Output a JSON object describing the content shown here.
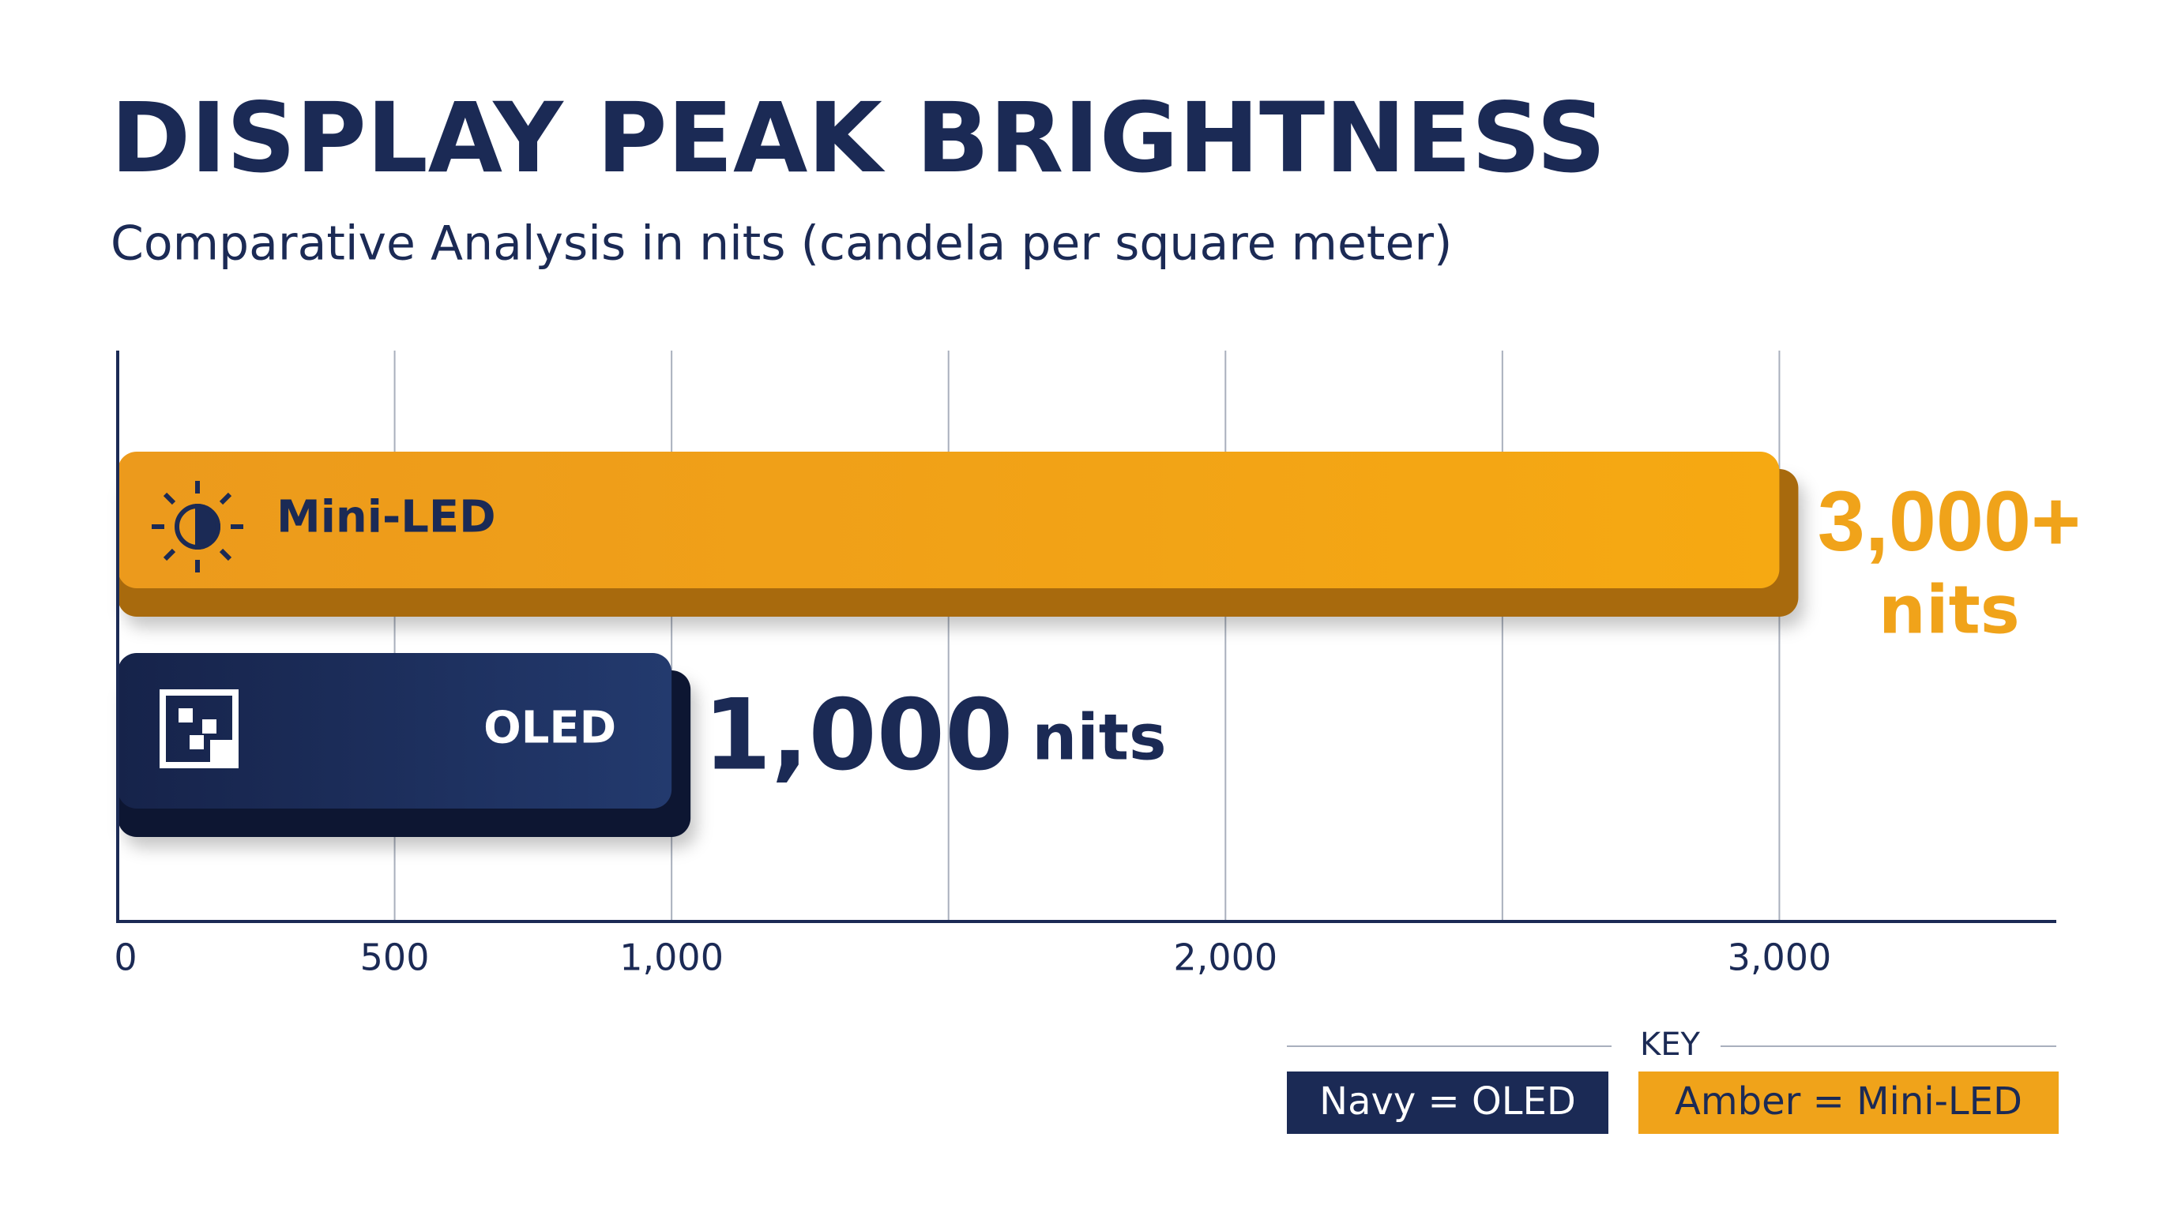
{
  "chart_data": {
    "type": "hbar",
    "title": "DISPLAY PEAK BRIGHTNESS",
    "subtitle": "Comparative Analysis in nits (candela per square meter)",
    "categories": [
      "Mini-LED",
      "OLED"
    ],
    "values": [
      3000,
      1000
    ],
    "value_labels": [
      "3,000+",
      "1,000"
    ],
    "unit": "nits",
    "colors": [
      "#f0a31a",
      "#1b2a55"
    ],
    "xlim": [
      0,
      3500
    ],
    "xticks": [
      0,
      500,
      {
        "value": 1000,
        "label": "1,000"
      },
      {
        "value": 2000,
        "label": "2,000"
      },
      {
        "value": 3000,
        "label": "3,000"
      }
    ],
    "minor_grid": [
      1500,
      2500
    ],
    "grid": true,
    "legend": {
      "title": "KEY",
      "entries": [
        "Navy = OLED",
        "Amber = Mini-LED"
      ],
      "colors": [
        "#1b2a55",
        "#f0a31a"
      ],
      "position": "bottom-right"
    }
  }
}
